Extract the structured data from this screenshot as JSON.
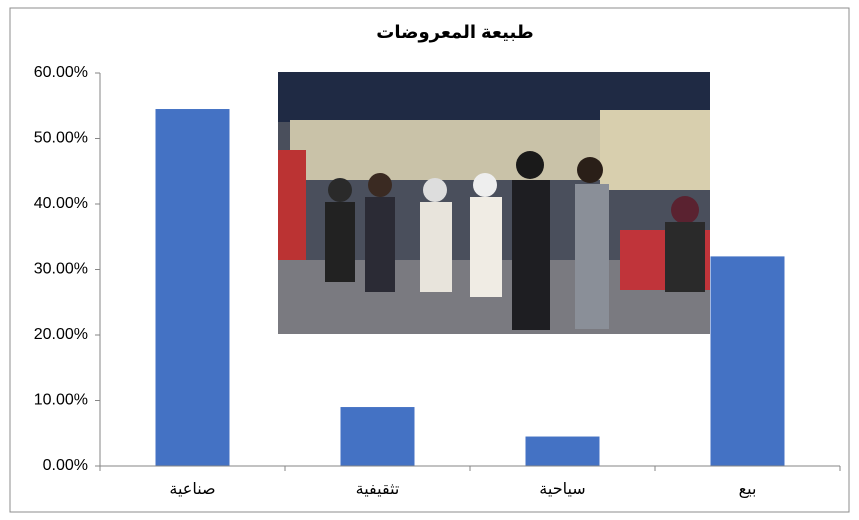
{
  "chart_data": {
    "type": "bar",
    "title": "طبيعة المعروضات",
    "categories": [
      "صناعية",
      "تثقيفية",
      "سياحية",
      "بيع"
    ],
    "values": [
      54.5,
      9,
      4.5,
      32
    ],
    "color": "#4472c4",
    "ylim": [
      0,
      60
    ],
    "yticks": [
      {
        "value": 0,
        "label": "0.00%"
      },
      {
        "value": 10,
        "label": "10.00%"
      },
      {
        "value": 20,
        "label": "20.00%"
      },
      {
        "value": 30,
        "label": "30.00%"
      },
      {
        "value": 40,
        "label": "40.00%"
      },
      {
        "value": 50,
        "label": "50.00%"
      },
      {
        "value": 60,
        "label": "60.00%"
      }
    ],
    "grid": false
  }
}
